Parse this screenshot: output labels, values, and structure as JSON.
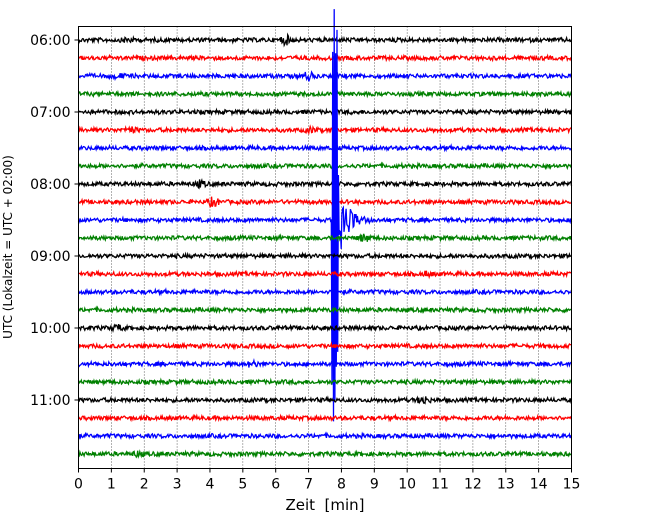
{
  "chart_data": {
    "type": "line",
    "title": "",
    "xlabel": "Zeit  [min]",
    "ylabel": "UTC (Lokalzeit = UTC + 02:00)",
    "xlim": [
      0,
      15
    ],
    "x_ticks": [
      0,
      1,
      2,
      3,
      4,
      5,
      6,
      7,
      8,
      9,
      10,
      11,
      12,
      13,
      14,
      15
    ],
    "ylim_hours": [
      "06:00",
      "11:45"
    ],
    "y_tick_labels": [
      "06:00",
      "07:00",
      "08:00",
      "09:00",
      "10:00",
      "11:00"
    ],
    "vertical_grid": true,
    "trace_interval_min": 15,
    "traces": [
      {
        "start": "06:00",
        "color": "#000000"
      },
      {
        "start": "06:15",
        "color": "#ff0000"
      },
      {
        "start": "06:30",
        "color": "#0000ff"
      },
      {
        "start": "06:45",
        "color": "#008000"
      },
      {
        "start": "07:00",
        "color": "#000000"
      },
      {
        "start": "07:15",
        "color": "#ff0000"
      },
      {
        "start": "07:30",
        "color": "#0000ff"
      },
      {
        "start": "07:45",
        "color": "#008000"
      },
      {
        "start": "08:00",
        "color": "#000000"
      },
      {
        "start": "08:15",
        "color": "#ff0000"
      },
      {
        "start": "08:30",
        "color": "#0000ff"
      },
      {
        "start": "08:45",
        "color": "#008000"
      },
      {
        "start": "09:00",
        "color": "#000000"
      },
      {
        "start": "09:15",
        "color": "#ff0000"
      },
      {
        "start": "09:30",
        "color": "#0000ff"
      },
      {
        "start": "09:45",
        "color": "#008000"
      },
      {
        "start": "10:00",
        "color": "#000000"
      },
      {
        "start": "10:15",
        "color": "#ff0000"
      },
      {
        "start": "10:30",
        "color": "#0000ff"
      },
      {
        "start": "10:45",
        "color": "#008000"
      },
      {
        "start": "11:00",
        "color": "#000000"
      },
      {
        "start": "11:15",
        "color": "#ff0000"
      },
      {
        "start": "11:30",
        "color": "#0000ff"
      },
      {
        "start": "11:45",
        "color": "#008000"
      }
    ],
    "event": {
      "trace_start": "08:30",
      "onset_min": 7.7,
      "peak_min": 7.8,
      "amplitude_traces": 12,
      "coda_end_min": 9.0
    },
    "bursts": [
      {
        "trace_start": "06:00",
        "min": 6.3,
        "amp": 1.0
      },
      {
        "trace_start": "06:00",
        "min": 1.5,
        "amp": 0.5
      },
      {
        "trace_start": "06:30",
        "min": 7.0,
        "amp": 0.9
      },
      {
        "trace_start": "06:30",
        "min": 1.2,
        "amp": 0.5
      },
      {
        "trace_start": "07:15",
        "min": 1.6,
        "amp": 0.6
      },
      {
        "trace_start": "07:15",
        "min": 7.1,
        "amp": 0.5
      },
      {
        "trace_start": "08:00",
        "min": 3.7,
        "amp": 0.7
      },
      {
        "trace_start": "08:15",
        "min": 4.1,
        "amp": 1.0
      },
      {
        "trace_start": "08:45",
        "min": 8.7,
        "amp": 0.8
      },
      {
        "trace_start": "09:15",
        "min": 10.6,
        "amp": 0.5
      },
      {
        "trace_start": "10:00",
        "min": 1.2,
        "amp": 0.6
      },
      {
        "trace_start": "10:30",
        "min": 5.3,
        "amp": 0.6
      },
      {
        "trace_start": "11:00",
        "min": 10.5,
        "amp": 0.9
      },
      {
        "trace_start": "11:45",
        "min": 1.8,
        "amp": 0.5
      }
    ]
  }
}
